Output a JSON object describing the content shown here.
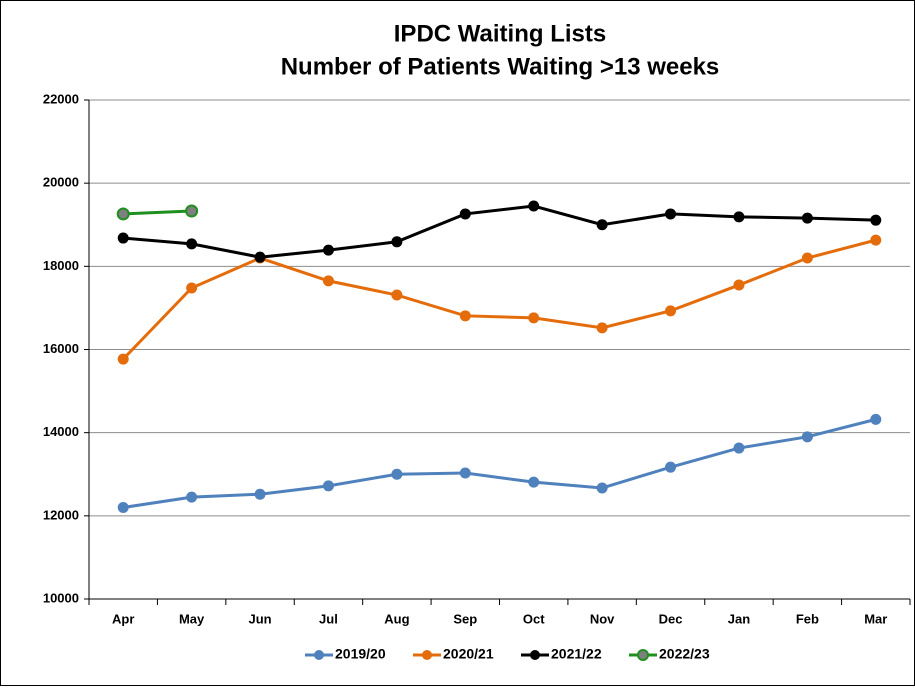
{
  "chart_data": {
    "type": "line",
    "title": [
      "IPDC Waiting Lists",
      "Number of Patients Waiting >13 weeks"
    ],
    "categories": [
      "Apr",
      "May",
      "Jun",
      "Jul",
      "Aug",
      "Sep",
      "Oct",
      "Nov",
      "Dec",
      "Jan",
      "Feb",
      "Mar"
    ],
    "series": [
      {
        "name": "2019/20",
        "color": "#4f81bd",
        "values": [
          12200,
          12450,
          12520,
          12720,
          13000,
          13030,
          12810,
          12670,
          13170,
          13630,
          13900,
          14320
        ]
      },
      {
        "name": "2020/21",
        "color": "#e46c0a",
        "values": [
          15770,
          17480,
          18200,
          17650,
          17310,
          16810,
          16760,
          16520,
          16930,
          17550,
          18200,
          18630
        ]
      },
      {
        "name": "2021/22",
        "color": "#000000",
        "values": [
          18680,
          18540,
          18220,
          18390,
          18590,
          19260,
          19450,
          19000,
          19260,
          19190,
          19160,
          19110
        ]
      },
      {
        "name": "2022/23",
        "color": "#1f8f1f",
        "marker_color": "#7f7f7f",
        "values": [
          19260,
          19330,
          null,
          null,
          null,
          null,
          null,
          null,
          null,
          null,
          null,
          null
        ]
      }
    ],
    "ylim": [
      10000,
      22000
    ],
    "yticks": [
      10000,
      12000,
      14000,
      16000,
      18000,
      20000,
      22000
    ],
    "grid": true,
    "legend": "bottom"
  }
}
